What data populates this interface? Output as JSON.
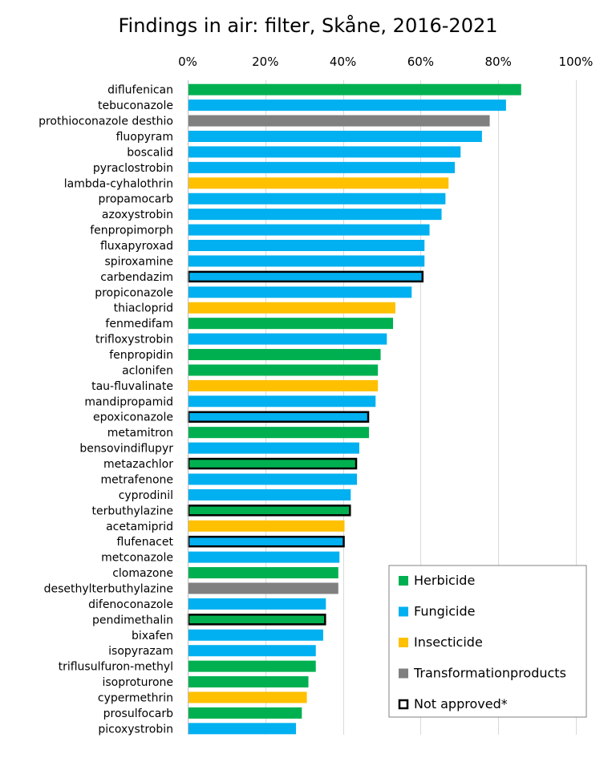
{
  "chart_data": {
    "type": "bar",
    "orientation": "horizontal",
    "title": "Findings in air: filter, Skåne, 2016-2021",
    "xlabel": "",
    "ylabel": "",
    "xlim": [
      0,
      1
    ],
    "x_ticks": [
      "0%",
      "20%",
      "40%",
      "60%",
      "80%",
      "100%"
    ],
    "x_tick_values": [
      0,
      0.2,
      0.4,
      0.6,
      0.8,
      1.0
    ],
    "grid": "vertical",
    "legend_position": "bottom-right",
    "categories": [
      "diflufenican",
      "tebuconazole",
      "prothioconazole desthio",
      "fluopyram",
      "boscalid",
      "pyraclostrobin",
      "lambda-cyhalothrin",
      "propamocarb",
      "azoxystrobin",
      "fenpropimorph",
      "fluxapyroxad",
      "spiroxamine",
      "carbendazim",
      "propiconazole",
      "thiacloprid",
      "fenmedifam",
      "trifloxystrobin",
      "fenpropidin",
      "aclonifen",
      "tau-fluvalinate",
      "mandipropamid",
      "epoxiconazole",
      "metamitron",
      "bensovindiflupyr",
      "metazachlor",
      "metrafenone",
      "cyprodinil",
      "terbuthylazine",
      "acetamiprid",
      "flufenacet",
      "metconazole",
      "clomazone",
      "desethylterbuthylazine",
      "difenoconazole",
      "pendimethalin",
      "bixafen",
      "isopyrazam",
      "triflusulfuron-methyl",
      "isoproturone",
      "cypermethrin",
      "prosulfocarb",
      "picoxystrobin"
    ],
    "values": [
      0.859,
      0.82,
      0.778,
      0.758,
      0.703,
      0.688,
      0.672,
      0.664,
      0.654,
      0.623,
      0.61,
      0.61,
      0.607,
      0.577,
      0.535,
      0.529,
      0.513,
      0.497,
      0.49,
      0.49,
      0.484,
      0.467,
      0.467,
      0.442,
      0.436,
      0.436,
      0.42,
      0.42,
      0.404,
      0.404,
      0.391,
      0.388,
      0.388,
      0.356,
      0.356,
      0.349,
      0.33,
      0.33,
      0.311,
      0.307,
      0.294,
      0.279
    ],
    "groups": [
      "Herbicide",
      "Fungicide",
      "Transformationproducts",
      "Fungicide",
      "Fungicide",
      "Fungicide",
      "Insecticide",
      "Fungicide",
      "Fungicide",
      "Fungicide",
      "Fungicide",
      "Fungicide",
      "Fungicide",
      "Fungicide",
      "Insecticide",
      "Herbicide",
      "Fungicide",
      "Herbicide",
      "Herbicide",
      "Insecticide",
      "Fungicide",
      "Fungicide",
      "Herbicide",
      "Fungicide",
      "Herbicide",
      "Fungicide",
      "Fungicide",
      "Herbicide",
      "Insecticide",
      "Fungicide",
      "Fungicide",
      "Herbicide",
      "Transformationproducts",
      "Fungicide",
      "Herbicide",
      "Fungicide",
      "Fungicide",
      "Herbicide",
      "Herbicide",
      "Insecticide",
      "Herbicide",
      "Fungicide"
    ],
    "not_approved": [
      false,
      false,
      false,
      false,
      false,
      false,
      false,
      false,
      false,
      false,
      false,
      false,
      true,
      false,
      false,
      false,
      false,
      false,
      false,
      false,
      false,
      true,
      false,
      false,
      true,
      false,
      false,
      true,
      false,
      true,
      false,
      false,
      false,
      false,
      true,
      false,
      false,
      false,
      false,
      false,
      false,
      false
    ],
    "legend": [
      {
        "label": "Herbicide",
        "color": "#00b050",
        "outline": false
      },
      {
        "label": "Fungicide",
        "color": "#00b0f0",
        "outline": false
      },
      {
        "label": "Insecticide",
        "color": "#ffc000",
        "outline": false
      },
      {
        "label": "Transformationproducts",
        "color": "#808080",
        "outline": false
      },
      {
        "label": "Not approved*",
        "color": "#ffffff",
        "outline": true
      }
    ],
    "colors": {
      "Herbicide": "#00b050",
      "Fungicide": "#00b0f0",
      "Insecticide": "#ffc000",
      "Transformationproducts": "#808080"
    }
  }
}
